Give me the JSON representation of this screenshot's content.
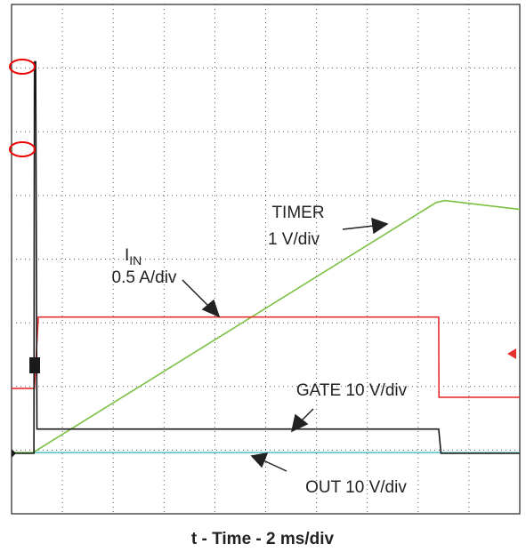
{
  "chart_data": {
    "type": "line",
    "xlabel": "t - Time - 2 ms/div",
    "xlim": [
      0,
      20
    ],
    "ylim": [
      0,
      8
    ],
    "xticks": [
      2,
      4,
      6,
      8,
      10,
      12,
      14,
      16,
      18
    ],
    "yticks": [
      1,
      2,
      3,
      4,
      5,
      6,
      7
    ],
    "grid": true,
    "series": [
      {
        "color": "#5cc6c6",
        "x": [
          0,
          20
        ],
        "values": [
          0.96,
          0.96
        ]
      },
      {
        "color": "#7bc043",
        "x": [
          0,
          0.84,
          16.71,
          17.05,
          20
        ],
        "values": [
          0.96,
          0.96,
          4.89,
          4.92,
          4.78
        ]
      },
      {
        "color": "#e53030",
        "x": [
          0,
          0.9,
          1.05,
          16.81,
          16.82,
          20
        ],
        "values": [
          1.97,
          1.97,
          3.09,
          3.09,
          1.83,
          1.83
        ]
      },
      {
        "color": "#1a1a1a",
        "x": [
          0,
          0.88,
          0.9,
          0.95,
          1.0,
          16.81,
          16.9,
          20
        ],
        "values": [
          0.95,
          0.95,
          7.1,
          7.1,
          1.33,
          1.33,
          0.95,
          0.95
        ]
      }
    ],
    "annotations": [
      {
        "text": "TIMER"
      },
      {
        "text": "1 V/div"
      },
      {
        "text": "I",
        "subscript": "IN"
      },
      {
        "text": "0.5 A/div"
      },
      {
        "text": "GATE 10 V/div"
      },
      {
        "text": "OUT 10 V/div"
      }
    ]
  }
}
